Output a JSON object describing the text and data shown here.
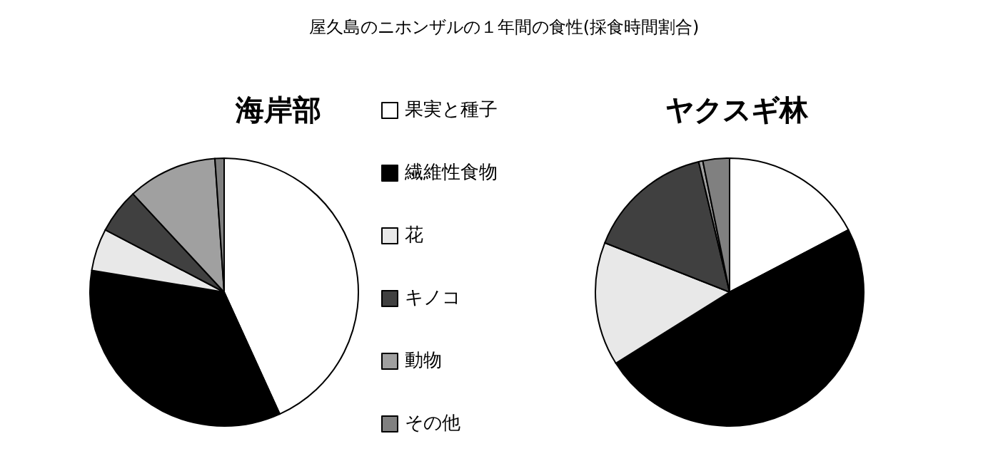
{
  "chart_data": {
    "type": "pie",
    "title": "屋久島のニホンザルの１年間の食性(採食時間割合)",
    "categories": [
      "果実と種子",
      "繊維性食物",
      "花",
      "キノコ",
      "動物",
      "その他"
    ],
    "colors": [
      "#ffffff",
      "#000000",
      "#e8e8e8",
      "#404040",
      "#a0a0a0",
      "#808080"
    ],
    "legend": "right",
    "series": [
      {
        "name": "海岸部",
        "values": [
          43.2,
          34.4,
          5.1,
          5.4,
          10.8,
          1.1
        ]
      },
      {
        "name": "ヤクスギ林",
        "values": [
          17.3,
          48.8,
          14.9,
          15.3,
          0.5,
          3.2
        ]
      }
    ]
  }
}
